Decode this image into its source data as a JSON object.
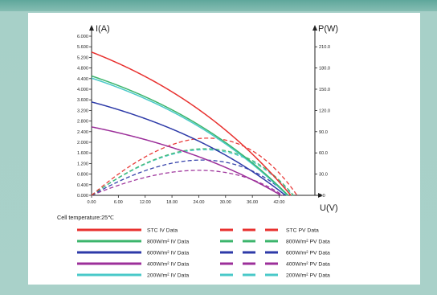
{
  "chart_data": {
    "type": "line",
    "left_axis_label": "I(A)",
    "right_axis_label": "P(W)",
    "xlabel": "U(V)",
    "x_ticks": [
      "0.00",
      "6.00",
      "12.00",
      "18.00",
      "24.00",
      "30.00",
      "36.00",
      "42.00"
    ],
    "left_ticks": [
      "0.000",
      "0.400",
      "0.800",
      "1.200",
      "1.600",
      "2.000",
      "2.400",
      "2.800",
      "3.200",
      "3.600",
      "4.000",
      "4.400",
      "4.800",
      "5.200",
      "5.600",
      "6.000"
    ],
    "right_ticks": [
      "0.0",
      "30.0",
      "60.0",
      "90.0",
      "120.0",
      "150.0",
      "180.0",
      "210.0"
    ],
    "xlim": [
      0,
      50
    ],
    "ylim_current": [
      0,
      6.0
    ],
    "ylim_power": [
      0,
      225
    ],
    "note": "Cell temperature:25℃",
    "iv_series": [
      {
        "name": "STC IV Data",
        "color": "#e8312f",
        "isc": 5.4,
        "voc": 44.6,
        "vmp": 36.8,
        "imp": 5.05
      },
      {
        "name": "800W/m² IV Data",
        "color": "#3cb56c",
        "isc": 4.5,
        "voc": 44.0,
        "vmp": 36.5,
        "imp": 4.2
      },
      {
        "name": "600W/m² IV Data",
        "color": "#2d3aa8",
        "isc": 3.52,
        "voc": 43.4,
        "vmp": 36.2,
        "imp": 3.2
      },
      {
        "name": "400W/m² IV Data",
        "color": "#9c2f9a",
        "isc": 2.58,
        "voc": 42.4,
        "vmp": 35.8,
        "imp": 2.35
      },
      {
        "name": "200W/m² IV Data",
        "color": "#49c9c9",
        "isc": 4.42,
        "voc": 43.8,
        "vmp": 36.3,
        "imp": 4.12
      }
    ],
    "pv_series": [
      {
        "name": "STC PV Data",
        "color": "#e8312f",
        "isc": 5.4,
        "voc": 46.0,
        "vmp": 37.5,
        "imp": 5.0
      },
      {
        "name": "800W/m² PV Data",
        "color": "#3cb56c",
        "isc": 4.5,
        "voc": 45.2,
        "vmp": 37.5,
        "imp": 4.1
      },
      {
        "name": "600W/m² PV Data",
        "color": "#2d3aa8",
        "isc": 3.52,
        "voc": 44.0,
        "vmp": 37.0,
        "imp": 3.1
      },
      {
        "name": "400W/m² PV Data",
        "color": "#9c2f9a",
        "isc": 2.58,
        "voc": 42.8,
        "vmp": 36.5,
        "imp": 2.28
      },
      {
        "name": "200W/m² PV Data",
        "color": "#49c9c9",
        "isc": 4.42,
        "voc": 45.0,
        "vmp": 37.2,
        "imp": 4.05
      }
    ],
    "grid": false,
    "legend_placement": "bottom"
  }
}
